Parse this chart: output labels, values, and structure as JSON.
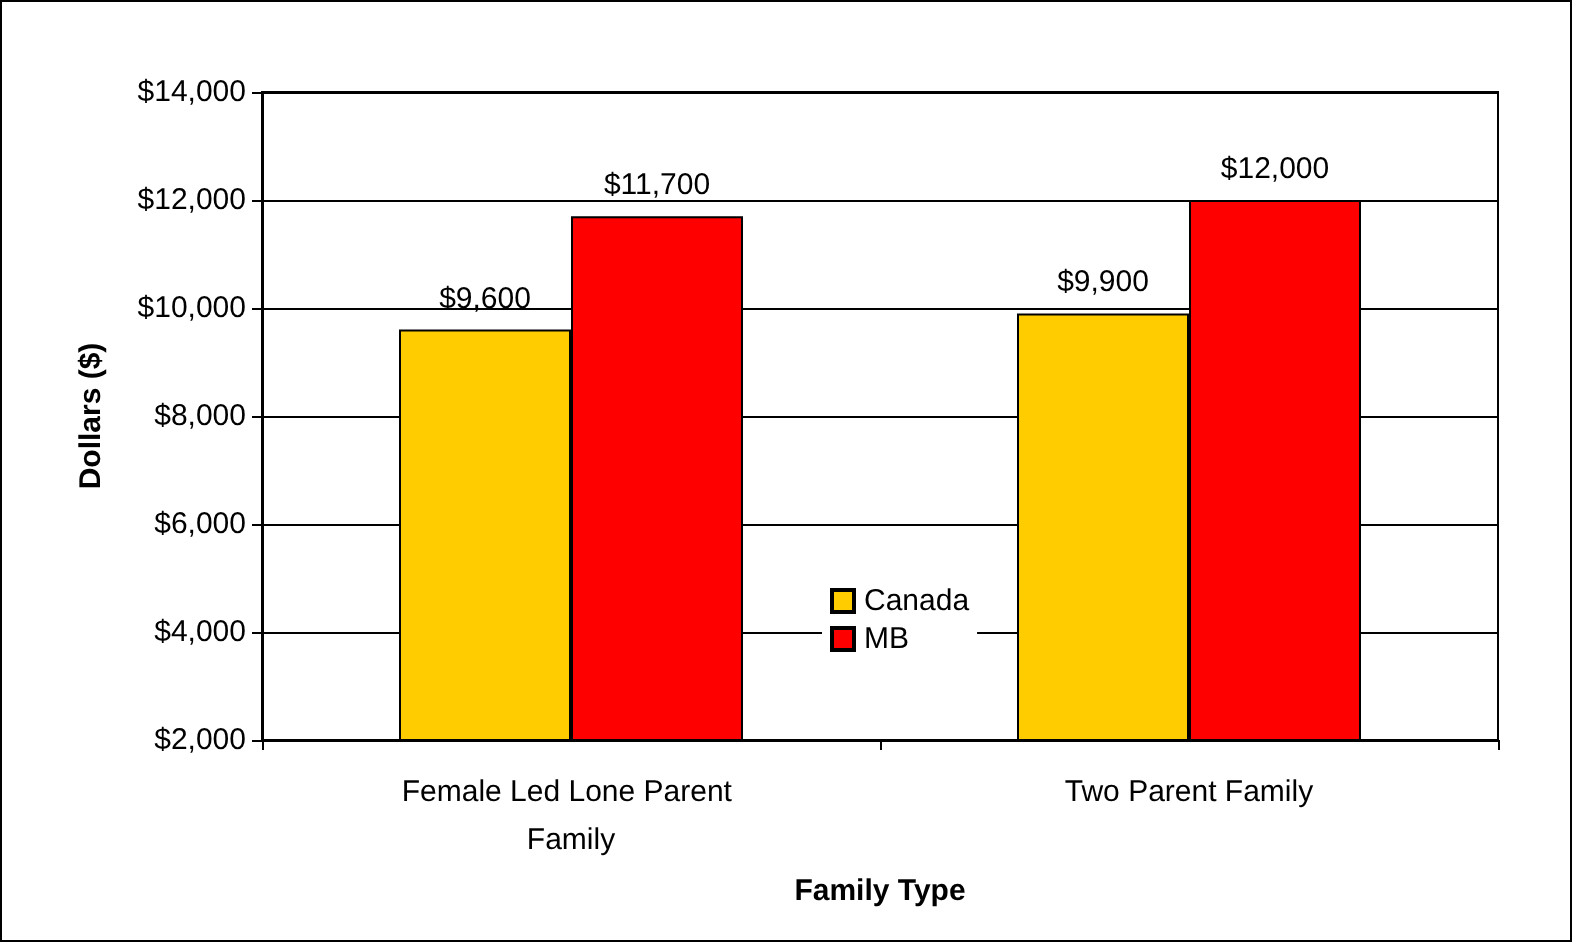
{
  "chart_data": {
    "type": "bar",
    "xlabel": "Family Type",
    "ylabel": "Dollars ($)",
    "categories": [
      "Female Led Lone Parent Family",
      "Two Parent Family"
    ],
    "series": [
      {
        "name": "Canada",
        "color": "#ffcc00",
        "values": [
          9600,
          9900
        ],
        "value_labels": [
          "$9,600",
          "$9,900"
        ]
      },
      {
        "name": "MB",
        "color": "#ff0000",
        "values": [
          11700,
          12000
        ],
        "value_labels": [
          "$11,700",
          "$12,000"
        ]
      }
    ],
    "ylim": [
      2000,
      14000
    ],
    "yticks": [
      {
        "value": 2000,
        "label": "$2,000"
      },
      {
        "value": 4000,
        "label": "$4,000"
      },
      {
        "value": 6000,
        "label": "$6,000"
      },
      {
        "value": 8000,
        "label": "$8,000"
      },
      {
        "value": 10000,
        "label": "$10,000"
      },
      {
        "value": 12000,
        "label": "$12,000"
      },
      {
        "value": 14000,
        "label": "$14,000"
      }
    ],
    "grid": "y",
    "legend": "bottom"
  }
}
